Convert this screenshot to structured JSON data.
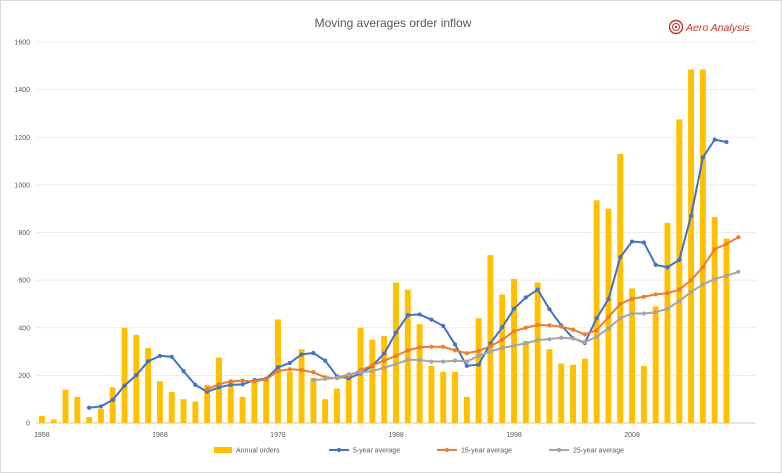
{
  "chart_data": {
    "type": "bar",
    "title": "Moving averages order inflow",
    "xlabel": "",
    "ylabel": "",
    "ylim": [
      0,
      1600
    ],
    "yticks": [
      0,
      200,
      400,
      600,
      800,
      1000,
      1200,
      1400,
      1600
    ],
    "xticks": [
      1958,
      1968,
      1978,
      1988,
      1998,
      2008
    ],
    "grid": "horizontal",
    "legend_position": "bottom",
    "years": [
      1958,
      1959,
      1960,
      1961,
      1962,
      1963,
      1964,
      1965,
      1966,
      1967,
      1968,
      1969,
      1970,
      1971,
      1972,
      1973,
      1974,
      1975,
      1976,
      1977,
      1978,
      1979,
      1980,
      1981,
      1982,
      1983,
      1984,
      1985,
      1986,
      1987,
      1988,
      1989,
      1990,
      1991,
      1992,
      1993,
      1994,
      1995,
      1996,
      1997,
      1998,
      1999,
      2000,
      2001,
      2002,
      2003,
      2004,
      2005,
      2006,
      2007,
      2008,
      2009,
      2010,
      2011,
      2012,
      2013,
      2014,
      2015,
      2016,
      2017,
      2018
    ],
    "series": [
      {
        "name": "Annual orders",
        "kind": "bar",
        "color": "#ffc000",
        "values": [
          30,
          15,
          140,
          110,
          25,
          60,
          150,
          400,
          370,
          315,
          175,
          130,
          100,
          90,
          160,
          275,
          175,
          110,
          180,
          190,
          435,
          215,
          310,
          190,
          100,
          145,
          205,
          400,
          350,
          365,
          590,
          560,
          415,
          240,
          215,
          215,
          110,
          440,
          705,
          540,
          605,
          345,
          590,
          310,
          250,
          245,
          270,
          935,
          900,
          1130,
          565,
          240,
          490,
          840,
          1275,
          1485,
          1485,
          865,
          775,
          null,
          null
        ]
      },
      {
        "name": "5-year average",
        "kind": "line",
        "color": "#4472c4",
        "values": [
          null,
          null,
          null,
          null,
          64,
          70,
          97,
          157,
          201,
          259,
          282,
          278,
          218,
          160,
          131,
          150,
          160,
          162,
          180,
          186,
          234,
          252,
          288,
          294,
          262,
          196,
          188,
          208,
          240,
          292,
          380,
          453,
          456,
          434,
          408,
          330,
          240,
          245,
          334,
          402,
          480,
          527,
          560,
          478,
          410,
          356,
          336,
          440,
          520,
          696,
          762,
          758,
          664,
          654,
          685,
          870,
          1115,
          1190,
          1180,
          null,
          null
        ]
      },
      {
        "name": "15-year average",
        "kind": "line",
        "color": "#ed7d31",
        "values": [
          null,
          null,
          null,
          null,
          null,
          null,
          null,
          null,
          null,
          null,
          null,
          null,
          null,
          null,
          142,
          163,
          175,
          178,
          175,
          183,
          218,
          226,
          222,
          213,
          192,
          188,
          198,
          222,
          242,
          262,
          282,
          305,
          318,
          320,
          320,
          305,
          293,
          303,
          322,
          350,
          385,
          400,
          412,
          410,
          405,
          392,
          372,
          390,
          445,
          500,
          522,
          530,
          540,
          545,
          560,
          600,
          655,
          730,
          752,
          780,
          null
        ]
      },
      {
        "name": "25-year average",
        "kind": "line",
        "color": "#a5a5a5",
        "values": [
          null,
          null,
          null,
          null,
          null,
          null,
          null,
          null,
          null,
          null,
          null,
          null,
          null,
          null,
          null,
          null,
          null,
          null,
          null,
          null,
          null,
          null,
          null,
          180,
          185,
          190,
          205,
          212,
          218,
          232,
          248,
          265,
          265,
          258,
          258,
          262,
          258,
          282,
          300,
          315,
          325,
          335,
          348,
          352,
          358,
          355,
          340,
          362,
          398,
          440,
          460,
          460,
          465,
          480,
          512,
          550,
          582,
          605,
          618,
          635,
          null
        ]
      }
    ]
  },
  "logo": {
    "text": "Aero Analysis",
    "color": "#c0392b"
  }
}
